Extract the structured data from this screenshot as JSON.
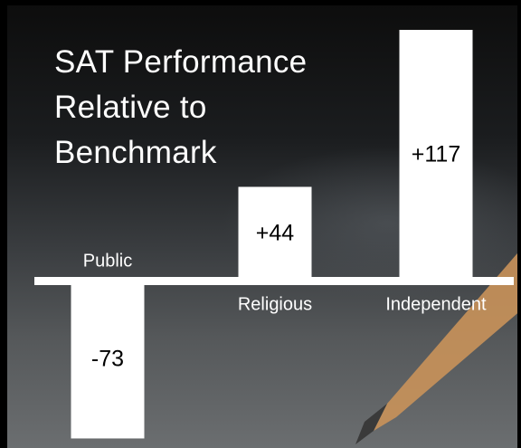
{
  "chart_data": {
    "type": "bar",
    "title": "SAT Performance Relative to Benchmark",
    "categories": [
      "Public",
      "Religious",
      "Independent"
    ],
    "values": [
      -73,
      44,
      117
    ],
    "value_labels": [
      "-73",
      "+44",
      "+117"
    ],
    "color": "#ffffff"
  }
}
